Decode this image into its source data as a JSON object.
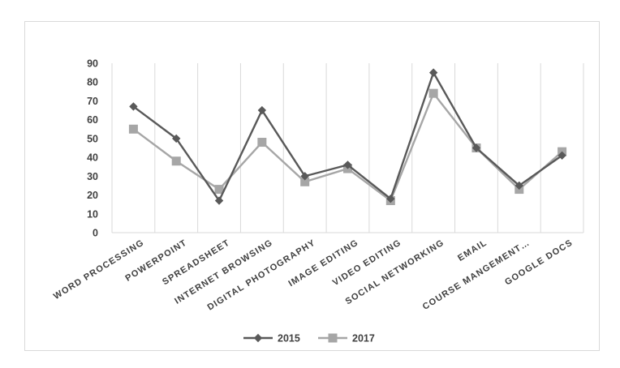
{
  "chart_data": {
    "type": "line",
    "title": "",
    "xlabel": "",
    "ylabel": "",
    "categories": [
      "WORD PROCESSING",
      "POWERPOINT",
      "SPREADSHEET",
      "INTERNET BROWSING",
      "DIGITAL PHOTOGRAPHY",
      "IMAGE EDITING",
      "VIDEO EDITING",
      "SOCIAL NETWORKING",
      "EMAIL",
      "COURSE MANGEMENT…",
      "GOOGLE DOCS"
    ],
    "series": [
      {
        "name": "2015",
        "color": "#595959",
        "marker": "diamond",
        "values": [
          67,
          50,
          17,
          65,
          30,
          36,
          18,
          85,
          45,
          25,
          41
        ]
      },
      {
        "name": "2017",
        "color": "#a6a6a6",
        "marker": "square",
        "values": [
          55,
          38,
          23,
          48,
          27,
          34,
          17,
          74,
          45,
          23,
          43
        ]
      }
    ],
    "ylim": [
      0,
      90
    ],
    "yticks": [
      0,
      10,
      20,
      30,
      40,
      50,
      60,
      70,
      80,
      90
    ],
    "grid": "vertical",
    "legend": "bottom"
  }
}
